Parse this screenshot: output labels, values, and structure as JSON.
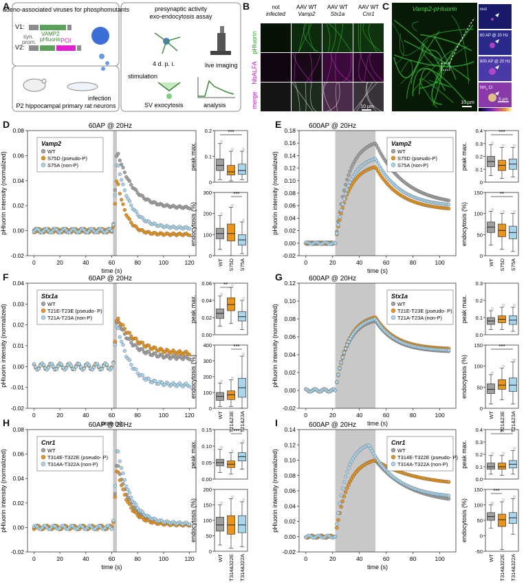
{
  "panel_labels": [
    "A",
    "B",
    "C",
    "D",
    "E",
    "F",
    "G",
    "H",
    "I"
  ],
  "panelA": {
    "left_title": "adeno-associated viruses for phosphomutants",
    "v1": "V1:",
    "v2": "V2:",
    "syn": "syn.",
    "prom": "prom.",
    "vamp2": "VAMP2",
    "phluorin": "pHluorin",
    "poi": "POI",
    "neurons": "P2 hippocampal primary rat neurons",
    "infection": "infection",
    "right_title1": "presynaptic activity",
    "right_title2": "exo-endocytosis assay",
    "dpi": "4 d. p. i.",
    "live": "live imaging",
    "stim": "stimulation",
    "sv": "SV exocytosis",
    "analysis": "analysis"
  },
  "panelB": {
    "col_headers": [
      [
        "not",
        "infected"
      ],
      [
        "AAV WT",
        "Vamp2"
      ],
      [
        "AAV WT",
        "Stx1a"
      ],
      [
        "AAV WT",
        "Cnr1"
      ]
    ],
    "row_labels": [
      "pHluorin",
      "NbALFA",
      "merge"
    ],
    "scale": "10 µm"
  },
  "panelC": {
    "title": "Vamp2-pHluorin",
    "insets": [
      "rest",
      "60 AP @ 20 Hz",
      "600 AP @ 20 Hz",
      "NH Cl"
    ],
    "nh4_sub": "4",
    "scale_main": "10 µm",
    "scale_inset": "5 µm",
    "cbar": "min  max"
  },
  "common": {
    "ylabel": "pHluorin intensity (normalized)",
    "xlabel": "time (s)",
    "box_y1": "peak max.",
    "box_y2": "endocytosis (%)"
  },
  "colors": {
    "WT": "#a0a0a0",
    "pseudoP": "#e8941a",
    "nonP": "#a9d6ec",
    "stim": "#c8c8c8"
  },
  "chart_data": [
    {
      "id": "D",
      "type": "scatter",
      "title": "60AP @ 20Hz",
      "gene": "Vamp2",
      "xlim": [
        -5,
        125
      ],
      "ylim": [
        -0.02,
        0.08
      ],
      "yticks": [
        "-0.02",
        "0.00",
        "0.02",
        "0.04",
        "0.06",
        "0.08"
      ],
      "xticks": [
        0,
        20,
        40,
        60,
        80,
        100,
        120
      ],
      "stim": [
        61,
        64
      ],
      "series": [
        {
          "name": "WT",
          "key": "WT",
          "base": 0,
          "peak": 0.065,
          "tp": 64,
          "end": 0.018,
          "tau": 12,
          "plateau": false
        },
        {
          "name": "S75D (pseudo-P)",
          "key": "pseudoP",
          "base": 0,
          "peak": 0.043,
          "tp": 64,
          "end": -0.003,
          "tau": 7,
          "plateau": false
        },
        {
          "name": "S75A (non-P)",
          "key": "nonP",
          "base": 0,
          "peak": 0.057,
          "tp": 64,
          "end": 0.002,
          "tau": 10,
          "plateau": false
        }
      ],
      "box1": {
        "ylim": [
          0,
          0.2
        ],
        "yticks": [
          "0",
          "0.1",
          "0.2"
        ],
        "sig": "***",
        "sig_pair": [
          0,
          2
        ],
        "boxes": [
          {
            "q1": 0.045,
            "med": 0.065,
            "q3": 0.09,
            "lo": 0.01,
            "hi": 0.15
          },
          {
            "q1": 0.028,
            "med": 0.04,
            "q3": 0.065,
            "lo": 0.005,
            "hi": 0.12
          },
          {
            "q1": 0.03,
            "med": 0.045,
            "q3": 0.07,
            "lo": 0.01,
            "hi": 0.12
          }
        ]
      },
      "box2": {
        "ylim": [
          0,
          300
        ],
        "yticks": [
          "0",
          "100",
          "200",
          "300"
        ],
        "sig": "***",
        "sig_pair": [
          1,
          2
        ],
        "boxes": [
          {
            "q1": 80,
            "med": 105,
            "q3": 130,
            "lo": 30,
            "hi": 190
          },
          {
            "q1": 70,
            "med": 105,
            "q3": 150,
            "lo": 0,
            "hi": 230
          },
          {
            "q1": 50,
            "med": 75,
            "q3": 100,
            "lo": 10,
            "hi": 160
          }
        ]
      },
      "cats": [
        "WT",
        "S75D",
        "S75A"
      ]
    },
    {
      "id": "E",
      "type": "scatter",
      "title": "600AP @ 20Hz",
      "gene": "Vamp2",
      "xlim": [
        -5,
        112
      ],
      "ylim": [
        -0.02,
        0.18
      ],
      "yticks": [
        "-0.02",
        "0.00",
        "0.02",
        "0.04",
        "0.06",
        "0.08",
        "0.10",
        "0.12",
        "0.14",
        "0.16",
        "0.18"
      ],
      "xticks": [
        0,
        20,
        40,
        60,
        80,
        100
      ],
      "stim": [
        22,
        52
      ],
      "series": [
        {
          "name": "WT",
          "key": "WT",
          "base": 0,
          "peak": 0.16,
          "tp": 52,
          "end": 0.06,
          "tau": 22,
          "plateau": true
        },
        {
          "name": "S75D (pseudo-P)",
          "key": "pseudoP",
          "base": 0,
          "peak": 0.122,
          "tp": 52,
          "end": 0.052,
          "tau": 18,
          "plateau": true
        },
        {
          "name": "S75A (non-P)",
          "key": "nonP",
          "base": 0,
          "peak": 0.135,
          "tp": 52,
          "end": 0.058,
          "tau": 18,
          "plateau": true
        }
      ],
      "box1": {
        "ylim": [
          0,
          0.4
        ],
        "yticks": [
          "0",
          "0.1",
          "0.2",
          "0.3",
          "0.4"
        ],
        "sig": "***",
        "sig_pair": [
          0,
          2
        ],
        "boxes": [
          {
            "q1": 0.12,
            "med": 0.16,
            "q3": 0.2,
            "lo": 0.05,
            "hi": 0.29
          },
          {
            "q1": 0.09,
            "med": 0.13,
            "q3": 0.17,
            "lo": 0.03,
            "hi": 0.27
          },
          {
            "q1": 0.1,
            "med": 0.14,
            "q3": 0.18,
            "lo": 0.04,
            "hi": 0.27
          }
        ]
      },
      "box2": {
        "ylim": [
          0,
          150
        ],
        "yticks": [
          "0",
          "50",
          "100",
          "150"
        ],
        "sig": "**",
        "sig_pair": [
          0,
          2
        ],
        "boxes": [
          {
            "q1": 55,
            "med": 68,
            "q3": 80,
            "lo": 25,
            "hi": 105
          },
          {
            "q1": 45,
            "med": 60,
            "q3": 75,
            "lo": 15,
            "hi": 100
          },
          {
            "q1": 40,
            "med": 55,
            "q3": 70,
            "lo": 10,
            "hi": 100
          }
        ]
      },
      "cats": [
        "WT",
        "S75D",
        "S75A"
      ]
    },
    {
      "id": "F",
      "type": "scatter",
      "title": "60AP @ 20Hz",
      "gene": "Stx1a",
      "xlim": [
        -5,
        125
      ],
      "ylim": [
        -0.02,
        0.04
      ],
      "yticks": [
        "-0.02",
        "-0.01",
        "0.00",
        "0.01",
        "0.02",
        "0.03",
        "0.04"
      ],
      "xticks": [
        0,
        20,
        40,
        60,
        80,
        100,
        120
      ],
      "stim": [
        61,
        64
      ],
      "series": [
        {
          "name": "WT",
          "key": "WT",
          "base": 0,
          "peak": 0.023,
          "tp": 64,
          "end": 0.004,
          "tau": 12,
          "plateau": false
        },
        {
          "name": "T21E-T23E (pseudo- P)",
          "key": "pseudoP",
          "base": 0,
          "peak": 0.024,
          "tp": 64,
          "end": 0.006,
          "tau": 15,
          "plateau": false
        },
        {
          "name": "T21A-T23A (non-P)",
          "key": "nonP",
          "base": 0,
          "peak": 0.021,
          "tp": 64,
          "end": -0.009,
          "tau": 10,
          "plateau": false
        }
      ],
      "box1": {
        "ylim": [
          0,
          0.06
        ],
        "yticks": [
          "0.00",
          "0.02",
          "0.04",
          "0.06"
        ],
        "sig": "**",
        "sig_pair": [
          0,
          1
        ],
        "boxes": [
          {
            "q1": 0.019,
            "med": 0.025,
            "q3": 0.03,
            "lo": 0.01,
            "hi": 0.045
          },
          {
            "q1": 0.028,
            "med": 0.035,
            "q3": 0.043,
            "lo": 0.013,
            "hi": 0.055
          },
          {
            "q1": 0.016,
            "med": 0.021,
            "q3": 0.027,
            "lo": 0.006,
            "hi": 0.04
          }
        ]
      },
      "box2": {
        "ylim": [
          0,
          400
        ],
        "yticks": [
          "0",
          "100",
          "200",
          "300",
          "400"
        ],
        "sig": "***",
        "sig_pair": [
          1,
          2
        ],
        "boxes": [
          {
            "q1": 50,
            "med": 75,
            "q3": 100,
            "lo": 10,
            "hi": 160
          },
          {
            "q1": 55,
            "med": 85,
            "q3": 110,
            "lo": 10,
            "hi": 180
          },
          {
            "q1": 70,
            "med": 130,
            "q3": 190,
            "lo": 0,
            "hi": 330
          }
        ]
      },
      "cats": [
        "WT",
        "T21&23E",
        "T21&23A"
      ]
    },
    {
      "id": "G",
      "type": "scatter",
      "title": "600AP @ 20Hz",
      "gene": "Stx1a",
      "xlim": [
        -5,
        112
      ],
      "ylim": [
        -0.02,
        0.12
      ],
      "yticks": [
        "-0.02",
        "0.00",
        "0.02",
        "0.04",
        "0.06",
        "0.08",
        "0.10",
        "0.12"
      ],
      "xticks": [
        0,
        20,
        40,
        60,
        80,
        100
      ],
      "stim": [
        22,
        52
      ],
      "series": [
        {
          "name": "WT",
          "key": "WT",
          "base": 0,
          "peak": 0.078,
          "tp": 52,
          "end": 0.043,
          "tau": 15,
          "plateau": true
        },
        {
          "name": "T21E-T23E (pseudo- P)",
          "key": "pseudoP",
          "base": 0,
          "peak": 0.082,
          "tp": 52,
          "end": 0.046,
          "tau": 15,
          "plateau": true
        },
        {
          "name": "T21A-T23A (non-P)",
          "key": "nonP",
          "base": 0,
          "peak": 0.08,
          "tp": 52,
          "end": 0.044,
          "tau": 15,
          "plateau": true
        }
      ],
      "box1": {
        "ylim": [
          0,
          0.3
        ],
        "yticks": [
          "0.0",
          "0.1",
          "0.2",
          "0.3"
        ],
        "sig": "",
        "sig_pair": [
          0,
          0
        ],
        "boxes": [
          {
            "q1": 0.06,
            "med": 0.08,
            "q3": 0.1,
            "lo": 0.03,
            "hi": 0.14
          },
          {
            "q1": 0.07,
            "med": 0.09,
            "q3": 0.11,
            "lo": 0.03,
            "hi": 0.16
          },
          {
            "q1": 0.06,
            "med": 0.085,
            "q3": 0.11,
            "lo": 0.02,
            "hi": 0.16
          }
        ]
      },
      "box2": {
        "ylim": [
          0,
          150
        ],
        "yticks": [
          "0",
          "50",
          "100",
          "150"
        ],
        "sig": "***",
        "sig_pair": [
          0,
          2
        ],
        "boxes": [
          {
            "q1": 35,
            "med": 45,
            "q3": 58,
            "lo": 10,
            "hi": 80
          },
          {
            "q1": 45,
            "med": 55,
            "q3": 68,
            "lo": 20,
            "hi": 95
          },
          {
            "q1": 40,
            "med": 55,
            "q3": 72,
            "lo": 10,
            "hi": 110
          }
        ]
      },
      "cats": [
        "WT",
        "T21&23E",
        "T21&23A"
      ]
    },
    {
      "id": "H",
      "type": "scatter",
      "title": "60AP @ 20Hz",
      "gene": "Cnr1",
      "xlim": [
        -5,
        125
      ],
      "ylim": [
        -0.02,
        0.08
      ],
      "yticks": [
        "-0.02",
        "0.00",
        "0.02",
        "0.04",
        "0.06",
        "0.08"
      ],
      "xticks": [
        0,
        20,
        40,
        60,
        80,
        100,
        120
      ],
      "stim": [
        61,
        64
      ],
      "series": [
        {
          "name": "WT",
          "key": "WT",
          "base": 0,
          "peak": 0.055,
          "tp": 64,
          "end": 0.002,
          "tau": 10,
          "plateau": false
        },
        {
          "name": "T314E-T322E (pseudo- P)",
          "key": "pseudoP",
          "base": 0,
          "peak": 0.05,
          "tp": 64,
          "end": 0.002,
          "tau": 9,
          "plateau": false
        },
        {
          "name": "T314A-T322A  (non-P)",
          "key": "nonP",
          "base": 0,
          "peak": 0.068,
          "tp": 64,
          "end": 0.003,
          "tau": 10,
          "plateau": false
        }
      ],
      "box1": {
        "ylim": [
          0,
          0.15
        ],
        "yticks": [
          "0.00",
          "0.05",
          "0.10",
          "0.15"
        ],
        "sig": "***",
        "sig_pair": [
          1,
          2
        ],
        "boxes": [
          {
            "q1": 0.04,
            "med": 0.05,
            "q3": 0.06,
            "lo": 0.02,
            "hi": 0.09
          },
          {
            "q1": 0.035,
            "med": 0.045,
            "q3": 0.055,
            "lo": 0.015,
            "hi": 0.08
          },
          {
            "q1": 0.055,
            "med": 0.068,
            "q3": 0.08,
            "lo": 0.03,
            "hi": 0.11
          }
        ]
      },
      "box2": {
        "ylim": [
          0,
          200
        ],
        "yticks": [
          "0",
          "50",
          "100",
          "150",
          "200"
        ],
        "sig": "",
        "sig_pair": [
          0,
          0
        ],
        "boxes": [
          {
            "q1": 65,
            "med": 85,
            "q3": 110,
            "lo": 20,
            "hi": 150
          },
          {
            "q1": 55,
            "med": 85,
            "q3": 115,
            "lo": 10,
            "hi": 170
          },
          {
            "q1": 60,
            "med": 85,
            "q3": 115,
            "lo": 15,
            "hi": 160
          }
        ]
      },
      "cats": [
        "WT",
        "T314&322E",
        "T314&322A"
      ]
    },
    {
      "id": "I",
      "type": "scatter",
      "title": "600AP @ 20Hz",
      "gene": "Cnr1",
      "xlim": [
        -5,
        112
      ],
      "ylim": [
        -0.02,
        0.14
      ],
      "yticks": [
        "-0.02",
        "0.00",
        "0.02",
        "0.04",
        "0.06",
        "0.08",
        "0.10",
        "0.12",
        "0.14"
      ],
      "xticks": [
        0,
        20,
        40,
        60,
        80,
        100
      ],
      "stim": [
        22,
        52
      ],
      "series": [
        {
          "name": "WT",
          "key": "WT",
          "base": 0,
          "peak": 0.1,
          "tp": 52,
          "end": 0.043,
          "tau": 25,
          "plateau": true
        },
        {
          "name": "T314E-T322E (pseudo- P)",
          "key": "pseudoP",
          "base": 0,
          "peak": 0.1,
          "tp": 52,
          "end": 0.066,
          "tau": 30,
          "plateau": true
        },
        {
          "name": "T314A-T322A  (non-P)",
          "key": "nonP",
          "base": 0,
          "peak": 0.12,
          "tp": 47,
          "end": 0.05,
          "tau": 20,
          "plateau": true
        }
      ],
      "box1": {
        "ylim": [
          0,
          0.4
        ],
        "yticks": [
          "0.0",
          "0.1",
          "0.2",
          "0.3",
          "0.4"
        ],
        "sig": "*",
        "sig_pair": [
          0,
          2
        ],
        "boxes": [
          {
            "q1": 0.08,
            "med": 0.1,
            "q3": 0.13,
            "lo": 0.04,
            "hi": 0.19
          },
          {
            "q1": 0.08,
            "med": 0.1,
            "q3": 0.13,
            "lo": 0.03,
            "hi": 0.19
          },
          {
            "q1": 0.09,
            "med": 0.12,
            "q3": 0.15,
            "lo": 0.04,
            "hi": 0.23
          }
        ]
      },
      "box2": {
        "ylim": [
          -50,
          150
        ],
        "yticks": [
          "-50",
          "0",
          "50",
          "100",
          "150"
        ],
        "sig": "***",
        "sig_pair": [
          0,
          1
        ],
        "boxes": [
          {
            "q1": 50,
            "med": 62,
            "q3": 75,
            "lo": 25,
            "hi": 100
          },
          {
            "q1": 30,
            "med": 52,
            "q3": 70,
            "lo": -45,
            "hi": 110
          },
          {
            "q1": 40,
            "med": 58,
            "q3": 75,
            "lo": 5,
            "hi": 120
          }
        ]
      },
      "cats": [
        "WT",
        "T314&322E",
        "T314&322A"
      ]
    }
  ]
}
